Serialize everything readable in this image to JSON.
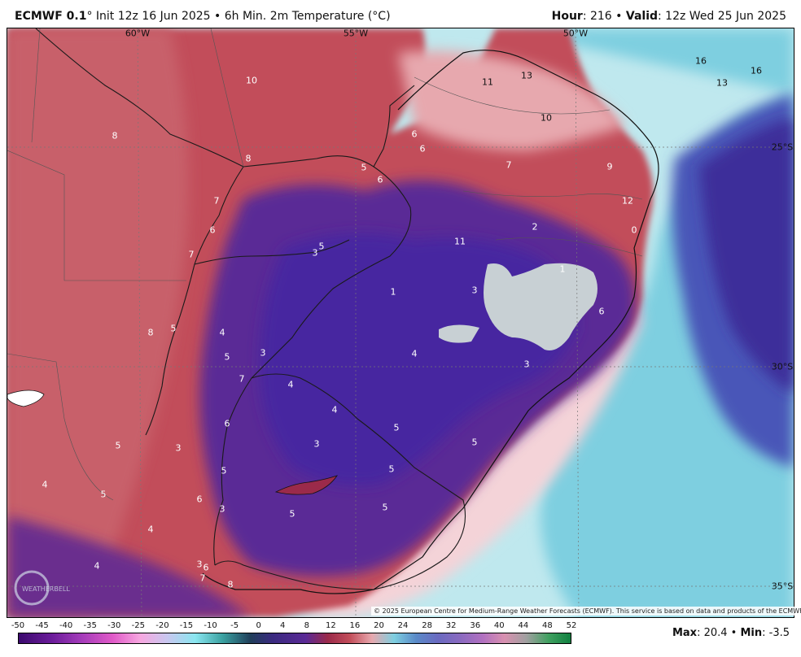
{
  "header": {
    "model_name": "ECMWF 0.1",
    "init_text": "° Init 12z 16 Jun 2025 • 6h Min. 2m Temperature (°C)",
    "hour_label": "Hour",
    "hour_value": ": 216 • ",
    "valid_label": "Valid",
    "valid_value": ": 12z Wed 25 Jun 2025"
  },
  "map": {
    "lon_labels": [
      "60°W",
      "55°W",
      "50°W"
    ],
    "lat_labels": [
      "25°S",
      "30°S",
      "35°S"
    ],
    "temperature_labels": [
      "10",
      "8",
      "11",
      "13",
      "16",
      "13",
      "16",
      "10",
      "6",
      "6",
      "8",
      "5",
      "6",
      "7",
      "9",
      "7",
      "12",
      "6",
      "2",
      "7",
      "5",
      "3",
      "11",
      "0",
      "1",
      "1",
      "3",
      "6",
      "8",
      "5",
      "4",
      "4",
      "5",
      "3",
      "7",
      "4",
      "3",
      "4",
      "5",
      "6",
      "5",
      "3",
      "3",
      "5",
      "5",
      "5",
      "4",
      "5",
      "6",
      "5",
      "3",
      "5",
      "4",
      "4",
      "3",
      "6",
      "7",
      "8"
    ],
    "logo_text": "WEATHERBELL",
    "copyright": "© 2025 European Centre for Medium-Range Weather Forecasts (ECMWF). This service is based on data and products of the ECMWF."
  },
  "legend": {
    "ticks": [
      "-50",
      "-45",
      "-40",
      "-35",
      "-30",
      "-25",
      "-20",
      "-15",
      "-10",
      "-5",
      "0",
      "4",
      "8",
      "12",
      "16",
      "20",
      "24",
      "28",
      "32",
      "36",
      "40",
      "44",
      "48",
      "52"
    ]
  },
  "footer": {
    "max_label": "Max",
    "max_value": ": 20.4 • ",
    "min_label": "Min",
    "min_value": ": -3.5"
  }
}
